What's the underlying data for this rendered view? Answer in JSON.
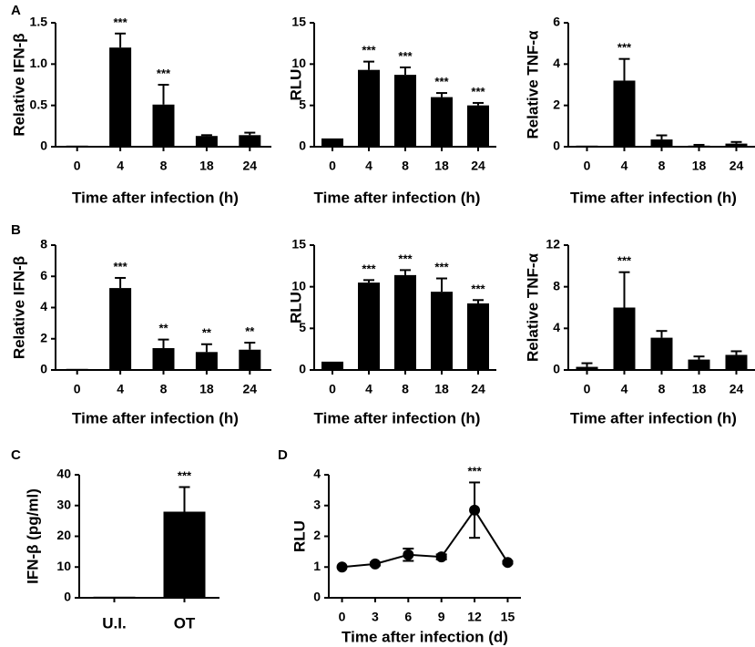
{
  "chart_data": [
    {
      "panel_label": "A",
      "type": "bar",
      "ylabel": "Relative IFN-β",
      "xlabel": "Time after infection (h)",
      "categories": [
        "0",
        "4",
        "8",
        "18",
        "24"
      ],
      "values": [
        0.01,
        1.2,
        0.51,
        0.13,
        0.14
      ],
      "errors": [
        0,
        0.17,
        0.24,
        0.01,
        0.03
      ],
      "stars": [
        "",
        "***",
        "***",
        "",
        ""
      ],
      "ylim": [
        0,
        1.5
      ],
      "yticks": [
        "0",
        "0.5",
        "1.0",
        "1.5"
      ]
    },
    {
      "type": "bar",
      "ylabel": "RLU",
      "xlabel": "Time after infection (h)",
      "categories": [
        "0",
        "4",
        "8",
        "18",
        "24"
      ],
      "values": [
        1.0,
        9.3,
        8.7,
        6.0,
        5.0
      ],
      "errors": [
        0,
        1.0,
        0.9,
        0.5,
        0.3
      ],
      "stars": [
        "",
        "***",
        "***",
        "***",
        "***"
      ],
      "ylim": [
        0,
        15
      ],
      "yticks": [
        "0",
        "5",
        "10",
        "15"
      ]
    },
    {
      "type": "bar",
      "ylabel": "Relative TNF-α",
      "xlabel": "Time after infection (h)",
      "categories": [
        "0",
        "4",
        "8",
        "18",
        "24"
      ],
      "values": [
        0.0,
        3.2,
        0.35,
        0.05,
        0.15
      ],
      "errors": [
        0,
        1.05,
        0.2,
        0.04,
        0.08
      ],
      "stars": [
        "",
        "***",
        "",
        "",
        ""
      ],
      "ylim": [
        0,
        6
      ],
      "yticks": [
        "0",
        "2",
        "4",
        "6"
      ]
    },
    {
      "panel_label": "B",
      "type": "bar",
      "ylabel": "Relative IFN-β",
      "xlabel": "Time after infection (h)",
      "categories": [
        "0",
        "4",
        "8",
        "18",
        "24"
      ],
      "values": [
        0.03,
        5.25,
        1.4,
        1.15,
        1.3
      ],
      "errors": [
        0,
        0.65,
        0.55,
        0.5,
        0.45
      ],
      "stars": [
        "",
        "***",
        "**",
        "**",
        "**"
      ],
      "ylim": [
        0,
        8
      ],
      "yticks": [
        "0",
        "2",
        "4",
        "6",
        "8"
      ]
    },
    {
      "type": "bar",
      "ylabel": "RLU",
      "xlabel": "Time after infection (h)",
      "categories": [
        "0",
        "4",
        "8",
        "18",
        "24"
      ],
      "values": [
        1.0,
        10.5,
        11.4,
        9.4,
        8.0
      ],
      "errors": [
        0,
        0.3,
        0.6,
        1.6,
        0.4
      ],
      "stars": [
        "",
        "***",
        "***",
        "***",
        "***"
      ],
      "ylim": [
        0,
        15
      ],
      "yticks": [
        "0",
        "5",
        "10",
        "15"
      ]
    },
    {
      "type": "bar",
      "ylabel": "Relative TNF-α",
      "xlabel": "Time after infection (h)",
      "categories": [
        "0",
        "4",
        "8",
        "18",
        "24"
      ],
      "values": [
        0.3,
        6.0,
        3.1,
        1.0,
        1.45
      ],
      "errors": [
        0.35,
        3.4,
        0.65,
        0.3,
        0.35
      ],
      "stars": [
        "",
        "***",
        "",
        "",
        ""
      ],
      "ylim": [
        0,
        12
      ],
      "yticks": [
        "0",
        "4",
        "8",
        "12"
      ]
    },
    {
      "panel_label": "C",
      "type": "bar",
      "ylabel": "IFN-β (pg/ml)",
      "xlabel": "",
      "categories": [
        "U.I.",
        "OT"
      ],
      "values": [
        0,
        28
      ],
      "errors": [
        0,
        8
      ],
      "stars": [
        "",
        "***"
      ],
      "ylim": [
        0,
        40
      ],
      "yticks": [
        "0",
        "10",
        "20",
        "30",
        "40"
      ]
    },
    {
      "panel_label": "D",
      "type": "line",
      "ylabel": "RLU",
      "xlabel": "Time after infection (d)",
      "x": [
        0,
        3,
        6,
        9,
        12,
        15
      ],
      "categories": [
        "0",
        "3",
        "6",
        "9",
        "12",
        "15"
      ],
      "values": [
        1.0,
        1.1,
        1.4,
        1.33,
        2.85,
        1.15
      ],
      "errors": [
        0.02,
        0.05,
        0.2,
        0.08,
        0.9,
        0.04
      ],
      "stars": [
        "",
        "",
        "",
        "",
        "***",
        ""
      ],
      "ylim": [
        0,
        4
      ],
      "yticks": [
        "0",
        "1",
        "2",
        "3",
        "4"
      ],
      "xlim": [
        -1.2,
        16.2
      ]
    }
  ]
}
